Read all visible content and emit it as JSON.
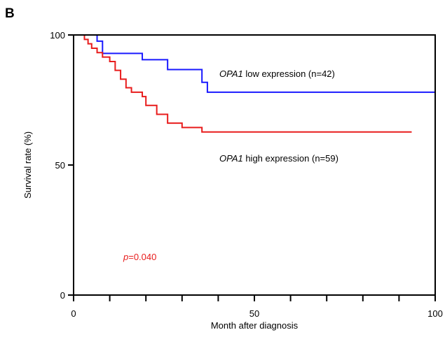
{
  "panel_label": "B",
  "chart_data": {
    "type": "line",
    "step": true,
    "title": "",
    "xlabel": "Month after diagnosis",
    "ylabel": "Survival rate (%)",
    "xlim": [
      0,
      100
    ],
    "ylim": [
      0,
      100
    ],
    "x_ticks": [
      0,
      50,
      100
    ],
    "x_minor_ticks": [
      10,
      20,
      30,
      40,
      60,
      70,
      80,
      90
    ],
    "y_ticks": [
      0,
      50,
      100
    ],
    "grid": false,
    "series": [
      {
        "name": "OPA1 low expression (n=42)",
        "gene": "OPA1",
        "label_rest": " low expression (n=42)",
        "color": "#1a1aff",
        "x": [
          0,
          6.5,
          8,
          19,
          26,
          35.5,
          37,
          100
        ],
        "y": [
          100,
          97.6,
          92.9,
          90.5,
          86.7,
          81.8,
          78.0,
          78.0
        ]
      },
      {
        "name": "OPA1 high expression (n=59)",
        "gene": "OPA1",
        "label_rest": " high expression (n=59)",
        "color": "#e81c1c",
        "x": [
          0,
          3,
          4,
          5,
          6.5,
          8,
          10,
          11.5,
          13,
          14.5,
          16,
          19,
          20,
          23,
          26,
          30,
          35.5,
          93.5
        ],
        "y": [
          100,
          98.3,
          96.6,
          94.9,
          93.2,
          91.5,
          89.8,
          86.4,
          83.0,
          79.7,
          78.0,
          76.3,
          72.9,
          69.5,
          66.1,
          64.4,
          62.7,
          62.7
        ]
      }
    ],
    "annotations": [
      {
        "italic": "p",
        "text": "=0.040",
        "color": "#e81c1c"
      }
    ]
  }
}
